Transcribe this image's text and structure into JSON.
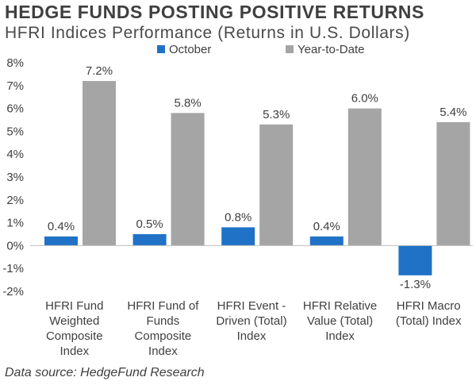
{
  "header": {
    "title": "HEDGE FUNDS POSTING POSITIVE RETURNS",
    "subtitle": "HFRI Indices Performance (Returns in U.S. Dollars)"
  },
  "footer": {
    "source": "Data source: HedgeFund Research"
  },
  "colors": {
    "october": "#1f72c6",
    "ytd": "#a5a5a5",
    "axis": "#bfbfbf",
    "text": "#3f3f3f"
  },
  "chart_data": {
    "type": "bar",
    "title": "",
    "xlabel": "",
    "ylabel": "",
    "ylim": [
      -2,
      8
    ],
    "yticks": [
      "-2%",
      "-1%",
      "0%",
      "1%",
      "2%",
      "3%",
      "4%",
      "5%",
      "6%",
      "7%",
      "8%"
    ],
    "ytick_values": [
      -2,
      -1,
      0,
      1,
      2,
      3,
      4,
      5,
      6,
      7,
      8
    ],
    "grid": false,
    "legend_position": "top",
    "categories": [
      [
        "HFRI Fund",
        "Weighted",
        "Composite",
        "Index"
      ],
      [
        "HFRI Fund of",
        "Funds",
        "Composite",
        "Index"
      ],
      [
        "HFRI Event -",
        "Driven (Total)",
        "Index"
      ],
      [
        "HFRI Relative",
        "Value (Total)",
        "Index"
      ],
      [
        "HFRI Macro",
        "(Total) Index"
      ]
    ],
    "series": [
      {
        "name": "October",
        "values": [
          0.4,
          0.5,
          0.8,
          0.4,
          -1.3
        ],
        "labels": [
          "0.4%",
          "0.5%",
          "0.8%",
          "0.4%",
          "-1.3%"
        ]
      },
      {
        "name": "Year-to-Date",
        "values": [
          7.2,
          5.8,
          5.3,
          6.0,
          5.4
        ],
        "labels": [
          "7.2%",
          "5.8%",
          "5.3%",
          "6.0%",
          "5.4%"
        ]
      }
    ]
  }
}
